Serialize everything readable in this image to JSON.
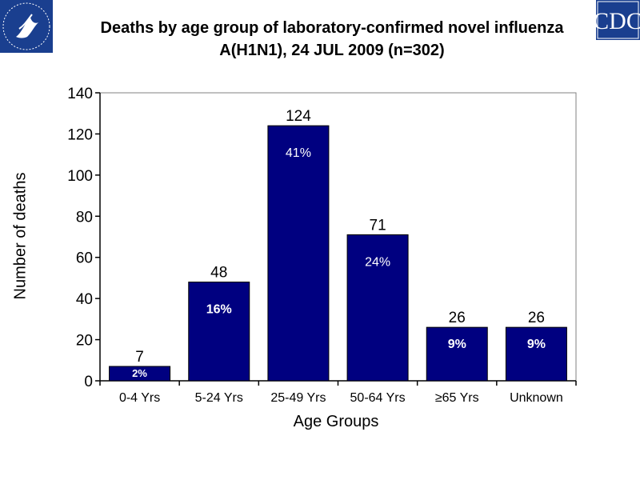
{
  "header": {
    "title_line1": "Deaths by age group of laboratory-confirmed novel influenza",
    "title_line2": "A(H1N1), 24 JUL 2009 (n=302)",
    "left_logo": "hhs-eagle-logo",
    "right_logo": "cdc-logo",
    "right_logo_text": "CDC"
  },
  "chart_data": {
    "type": "bar",
    "title": "Deaths by age group of laboratory-confirmed novel influenza A(H1N1), 24 JUL 2009 (n=302)",
    "xlabel": "Age Groups",
    "ylabel": "Number of deaths",
    "ylim": [
      0,
      140
    ],
    "yticks": [
      0,
      20,
      40,
      60,
      80,
      100,
      120,
      140
    ],
    "categories": [
      "0-4 Yrs",
      "5-24 Yrs",
      "25-49 Yrs",
      "50-64 Yrs",
      "≥65  Yrs",
      "Unknown"
    ],
    "values": [
      7,
      48,
      124,
      71,
      26,
      26
    ],
    "percent_labels": [
      "2%",
      "16%",
      "41%",
      "24%",
      "9%",
      "9%"
    ],
    "bar_color": "#000080",
    "grid": false,
    "legend": "none"
  }
}
